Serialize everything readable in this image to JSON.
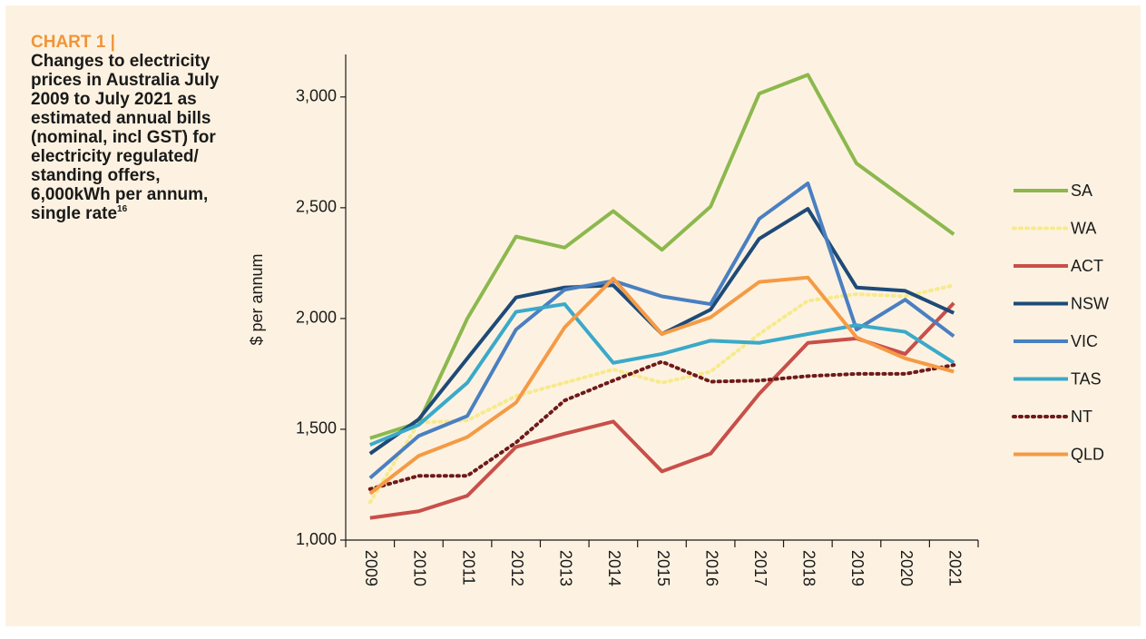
{
  "chart_data": {
    "type": "line",
    "kicker": "CHART 1 |",
    "title": "Changes to electricity prices in Australia July 2009 to July 2021 as estimated annual bills (nominal, incl GST) for electricity regulated/ standing offers, 6,000kWh per annum, single rate",
    "footnote": "16",
    "y_label": "$ per annum",
    "categories": [
      "2009",
      "2010",
      "2011",
      "2012",
      "2013",
      "2014",
      "2015",
      "2016",
      "2017",
      "2018",
      "2019",
      "2020",
      "2021"
    ],
    "ylim": [
      1000,
      3200
    ],
    "yticks": [
      {
        "value": 1000,
        "label": "1,000"
      },
      {
        "value": 1500,
        "label": "1,500"
      },
      {
        "value": 2000,
        "label": "2,000"
      },
      {
        "value": 2500,
        "label": "2,500"
      },
      {
        "value": 3000,
        "label": "3,000"
      }
    ],
    "legend": "right",
    "series": [
      {
        "name": "SA",
        "color": "#8cb84e",
        "style": "solid",
        "values": [
          1460,
          1530,
          2000,
          2370,
          2320,
          2485,
          2310,
          2505,
          3015,
          3100,
          2700,
          2540,
          2380
        ]
      },
      {
        "name": "WA",
        "color": "#f6ea8c",
        "style": "dotted",
        "values": [
          1170,
          1530,
          1540,
          1650,
          1710,
          1770,
          1710,
          1760,
          1930,
          2080,
          2110,
          2100,
          2150
        ]
      },
      {
        "name": "ACT",
        "color": "#c84f4a",
        "style": "solid",
        "values": [
          1100,
          1130,
          1200,
          1420,
          1480,
          1535,
          1310,
          1390,
          1660,
          1890,
          1910,
          1840,
          2070
        ]
      },
      {
        "name": "NSW",
        "color": "#1e4a78",
        "style": "solid",
        "values": [
          1390,
          1545,
          1820,
          2095,
          2140,
          2150,
          1930,
          2040,
          2360,
          2495,
          2140,
          2125,
          2025
        ]
      },
      {
        "name": "VIC",
        "color": "#4a7fc1",
        "style": "solid",
        "values": [
          1280,
          1470,
          1560,
          1950,
          2130,
          2170,
          2100,
          2065,
          2450,
          2610,
          1950,
          2085,
          1920
        ]
      },
      {
        "name": "TAS",
        "color": "#3ba9c9",
        "style": "solid",
        "values": [
          1430,
          1520,
          1710,
          2030,
          2065,
          1800,
          1840,
          1900,
          1890,
          1930,
          1970,
          1940,
          1800
        ]
      },
      {
        "name": "NT",
        "color": "#6e1a1a",
        "style": "dotted",
        "values": [
          1230,
          1290,
          1290,
          1440,
          1630,
          1720,
          1805,
          1715,
          1720,
          1740,
          1750,
          1750,
          1790
        ]
      },
      {
        "name": "QLD",
        "color": "#f59a45",
        "style": "solid",
        "values": [
          1210,
          1380,
          1465,
          1620,
          1960,
          2180,
          1930,
          2005,
          2165,
          2185,
          1915,
          1820,
          1760
        ]
      }
    ]
  }
}
